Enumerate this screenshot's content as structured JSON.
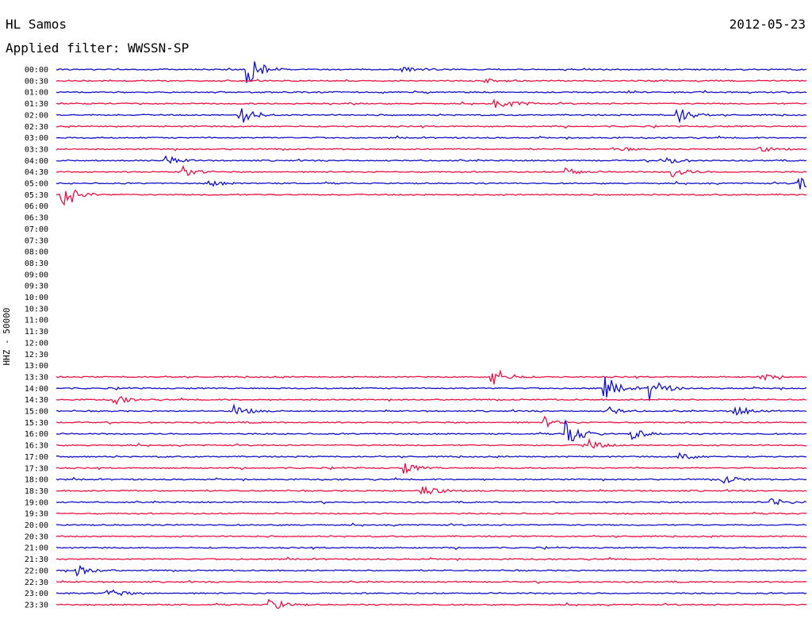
{
  "header": {
    "station": "HL Samos",
    "date": "2012-05-23",
    "filter_label": "Applied filter:",
    "filter_value": "WWSSN-SP"
  },
  "colors": {
    "trace_even": "#1010cc",
    "trace_odd": "#ee1144",
    "background": "#ffffff",
    "text": "#000000"
  },
  "chart_data": {
    "type": "helicorder",
    "ylabel": "HHZ - 50000",
    "row_labels": [
      "00:00",
      "00:30",
      "01:00",
      "01:30",
      "02:00",
      "02:30",
      "03:00",
      "03:30",
      "04:00",
      "04:30",
      "05:00",
      "05:30",
      "06:00",
      "06:30",
      "07:00",
      "07:30",
      "08:00",
      "08:30",
      "09:00",
      "09:30",
      "10:00",
      "10:30",
      "11:00",
      "11:30",
      "12:00",
      "12:30",
      "13:00",
      "13:30",
      "14:00",
      "14:30",
      "15:00",
      "15:30",
      "16:00",
      "16:30",
      "17:00",
      "17:30",
      "18:00",
      "18:30",
      "19:00",
      "19:30",
      "20:00",
      "20:30",
      "21:00",
      "21:30",
      "22:00",
      "22:30",
      "23:00",
      "23:30"
    ],
    "minutes_per_row": 30,
    "trace_color_order": [
      "blue",
      "red"
    ],
    "data_gap_rows": [
      "06:00",
      "06:30",
      "07:00",
      "07:30",
      "08:00",
      "08:30",
      "09:00",
      "09:30",
      "10:00",
      "10:30",
      "11:00",
      "11:30",
      "12:00",
      "12:30",
      "13:00"
    ],
    "events": [
      {
        "row": "00:00",
        "minute": 7.6,
        "amplitude": 1.8
      },
      {
        "row": "00:00",
        "minute": 13.8,
        "amplitude": 0.3
      },
      {
        "row": "00:30",
        "minute": 17.1,
        "amplitude": 0.2
      },
      {
        "row": "01:30",
        "minute": 17.5,
        "amplitude": 0.4
      },
      {
        "row": "01:30",
        "minute": 18.2,
        "amplitude": 0.3
      },
      {
        "row": "02:00",
        "minute": 7.3,
        "amplitude": 1.1
      },
      {
        "row": "02:00",
        "minute": 24.8,
        "amplitude": 1.1
      },
      {
        "row": "03:30",
        "minute": 22.3,
        "amplitude": 0.3
      },
      {
        "row": "03:30",
        "minute": 28.1,
        "amplitude": 0.3
      },
      {
        "row": "04:00",
        "minute": 4.3,
        "amplitude": 0.5
      },
      {
        "row": "04:00",
        "minute": 24.2,
        "amplitude": 0.6
      },
      {
        "row": "04:30",
        "minute": 5.0,
        "amplitude": 0.6
      },
      {
        "row": "04:30",
        "minute": 20.3,
        "amplitude": 0.5
      },
      {
        "row": "04:30",
        "minute": 24.6,
        "amplitude": 0.6
      },
      {
        "row": "05:00",
        "minute": 6.0,
        "amplitude": 0.4
      },
      {
        "row": "05:00",
        "minute": 29.6,
        "amplitude": 1.0
      },
      {
        "row": "05:30",
        "minute": 0.2,
        "amplitude": 1.8
      },
      {
        "row": "13:30",
        "minute": 17.4,
        "amplitude": 1.2
      },
      {
        "row": "13:30",
        "minute": 28.1,
        "amplitude": 0.4
      },
      {
        "row": "14:00",
        "minute": 21.9,
        "amplitude": 1.2
      },
      {
        "row": "14:00",
        "minute": 23.7,
        "amplitude": 1.2
      },
      {
        "row": "14:30",
        "minute": 2.3,
        "amplitude": 0.5
      },
      {
        "row": "15:00",
        "minute": 7.1,
        "amplitude": 0.6
      },
      {
        "row": "15:00",
        "minute": 22.0,
        "amplitude": 0.5
      },
      {
        "row": "15:00",
        "minute": 27.1,
        "amplitude": 0.6
      },
      {
        "row": "15:30",
        "minute": 19.5,
        "amplitude": 0.6
      },
      {
        "row": "16:00",
        "minute": 20.3,
        "amplitude": 1.8
      },
      {
        "row": "16:00",
        "minute": 23.0,
        "amplitude": 0.6
      },
      {
        "row": "16:30",
        "minute": 21.1,
        "amplitude": 0.8
      },
      {
        "row": "17:00",
        "minute": 24.9,
        "amplitude": 0.5
      },
      {
        "row": "17:30",
        "minute": 13.9,
        "amplitude": 0.6
      },
      {
        "row": "18:00",
        "minute": 26.6,
        "amplitude": 0.5
      },
      {
        "row": "18:30",
        "minute": 14.6,
        "amplitude": 0.9
      },
      {
        "row": "19:00",
        "minute": 28.5,
        "amplitude": 0.6
      },
      {
        "row": "22:00",
        "minute": 0.8,
        "amplitude": 0.6
      },
      {
        "row": "23:00",
        "minute": 2.0,
        "amplitude": 0.6
      },
      {
        "row": "23:30",
        "minute": 8.5,
        "amplitude": 0.8
      }
    ]
  }
}
